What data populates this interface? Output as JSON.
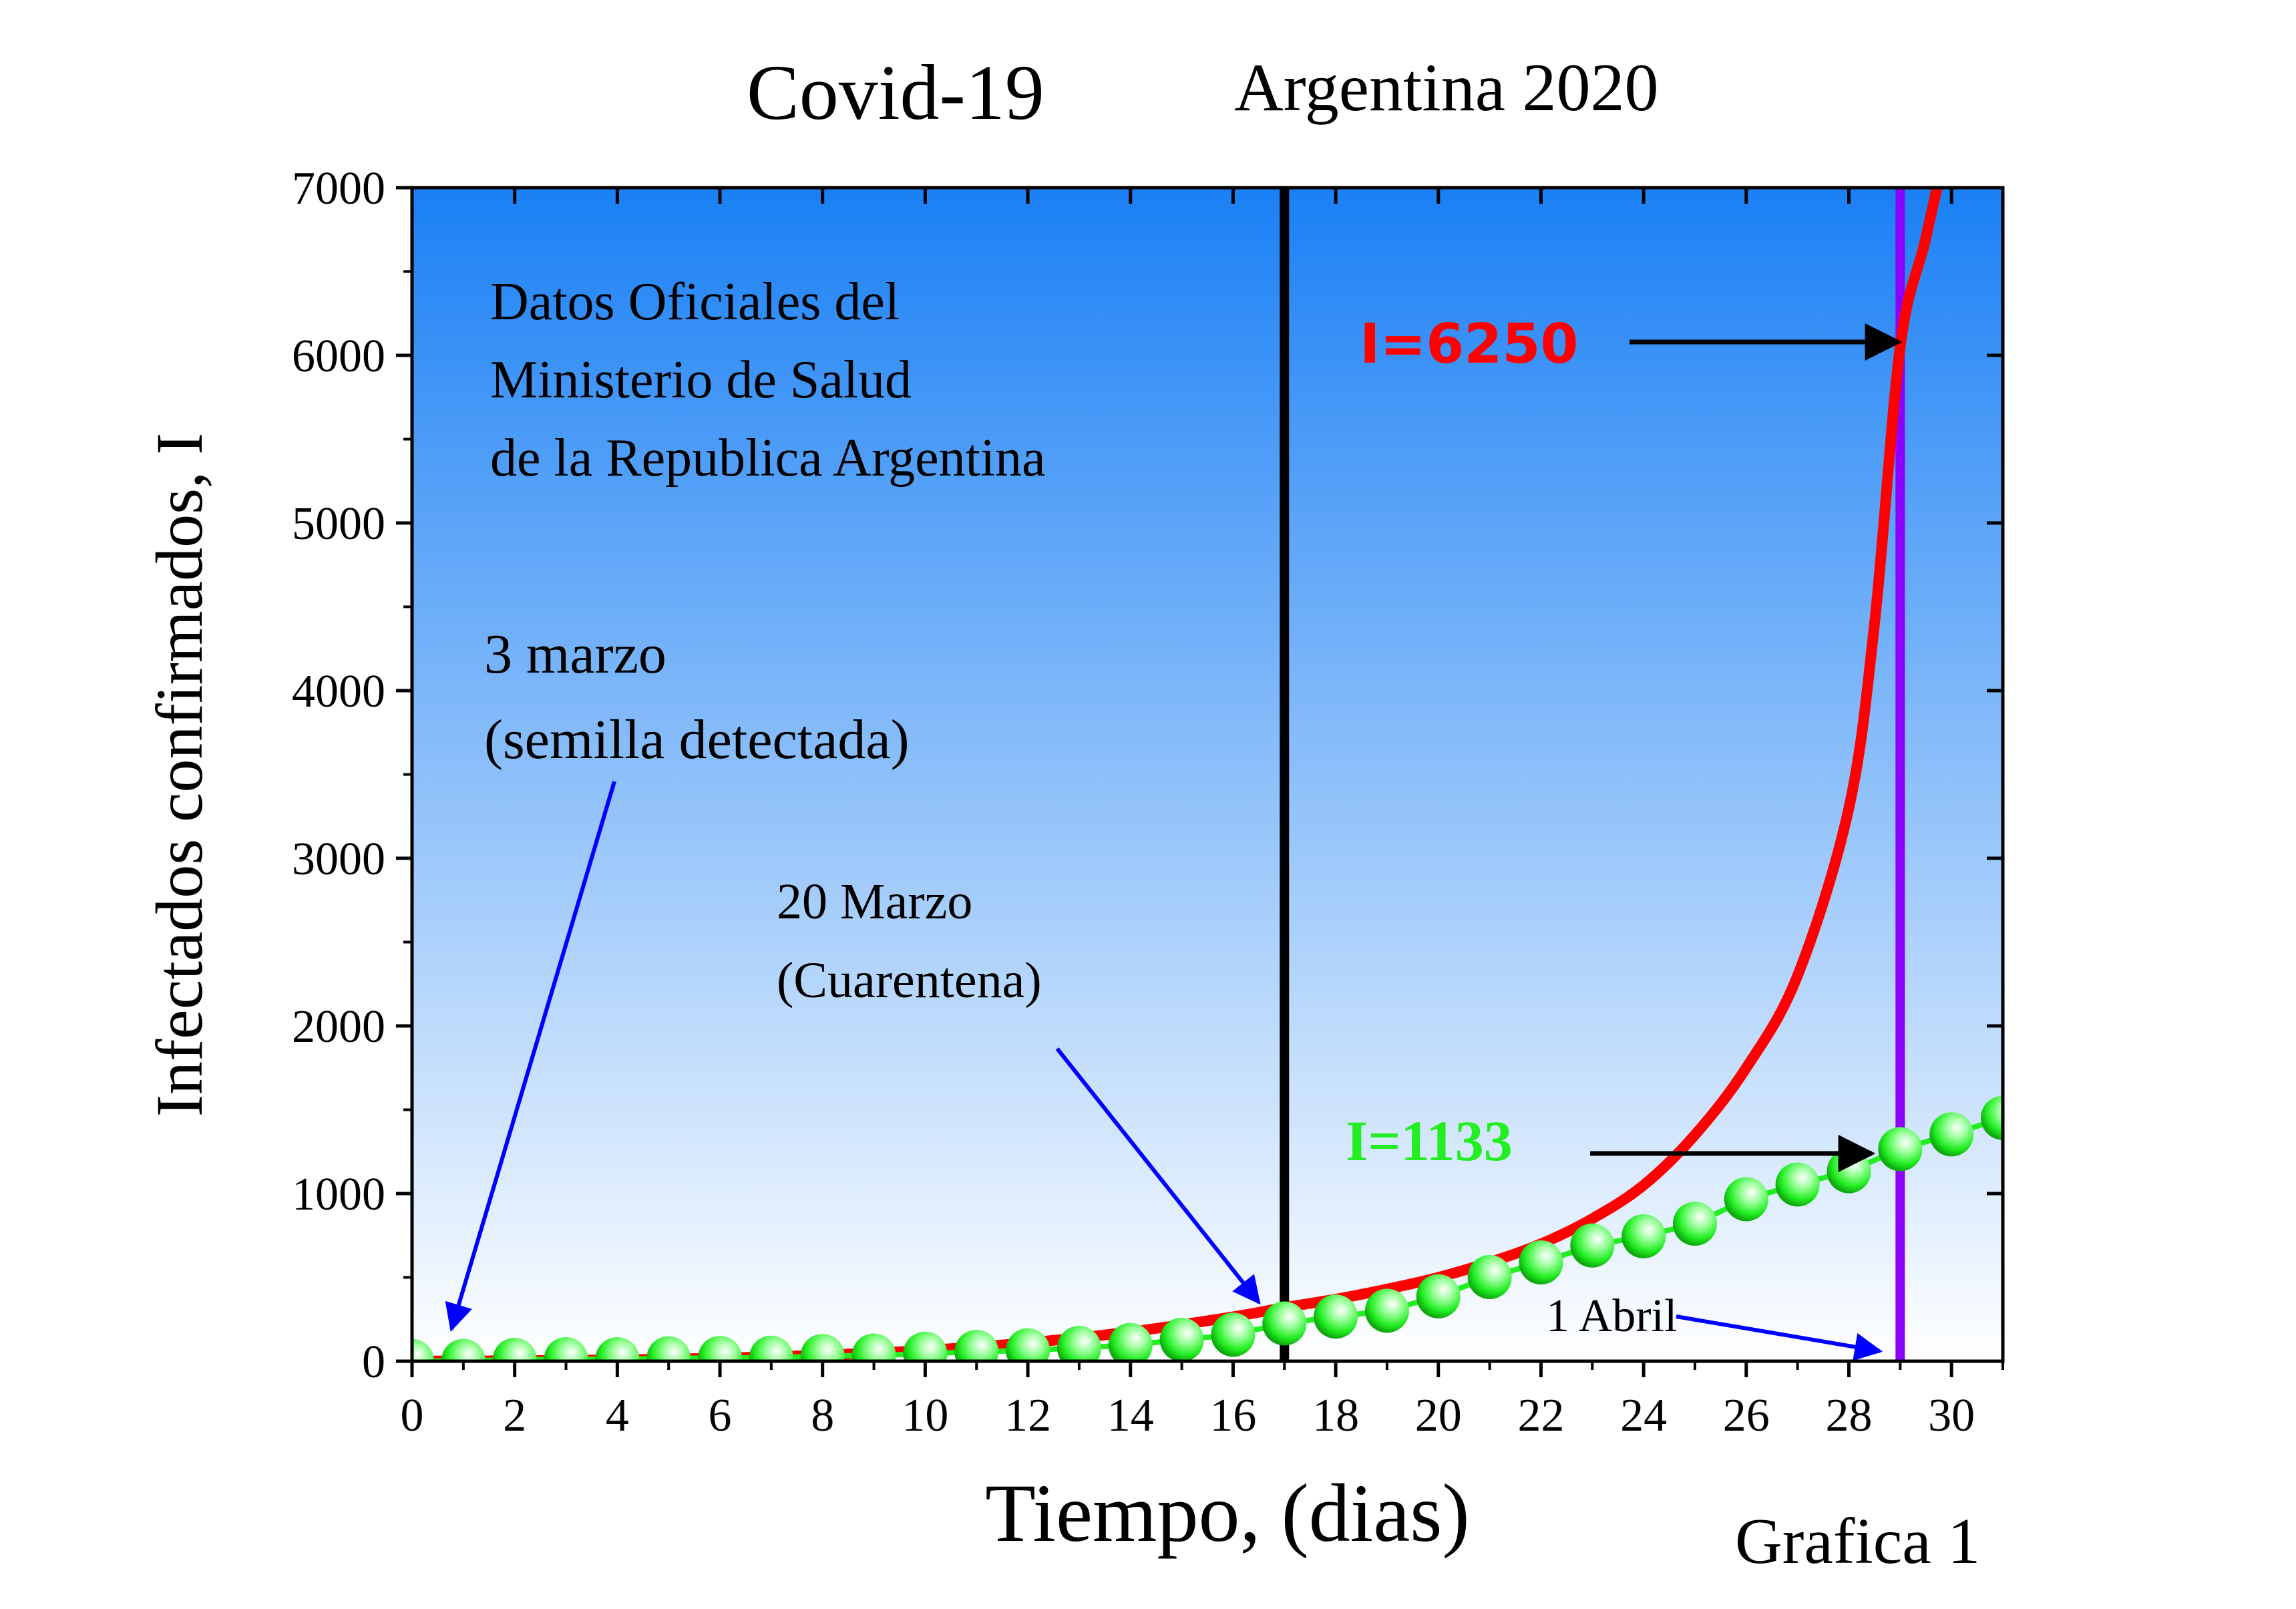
{
  "header": {
    "title_left": "Covid-19",
    "title_right": "Argentina 2020"
  },
  "figure_label": "Grafica 1",
  "annotations": {
    "source_lines": [
      "Datos Oficiales del",
      "Ministerio de Salud",
      "de la Republica Argentina"
    ],
    "seed_lines": [
      "3 marzo",
      "(semilla detectada)"
    ],
    "quarantine_lines": [
      "20 Marzo",
      "(Cuarentena)"
    ],
    "april_label": "1 Abril",
    "red_value_label": "I=6250",
    "green_value_label": "I=1133"
  },
  "colors": {
    "bg_top": "#1a80f5",
    "bg_bottom": "#ffffff",
    "exponential": "#ff0000",
    "observed": "#22ee22",
    "quarantine_line": "#000000",
    "april_line": "#8b00ff",
    "pointer_arrows": "#0000ff",
    "value_arrows": "#000000"
  },
  "chart_data": {
    "type": "line",
    "xlabel": "Tiempo, (dias)",
    "ylabel": "Infectados confirmados,  I",
    "xlim": [
      0,
      31
    ],
    "ylim": [
      0,
      7000
    ],
    "x_ticks": [
      0,
      2,
      4,
      6,
      8,
      10,
      12,
      14,
      16,
      18,
      20,
      22,
      24,
      26,
      28,
      30
    ],
    "y_ticks": [
      0,
      1000,
      2000,
      3000,
      4000,
      5000,
      6000,
      7000
    ],
    "grid": false,
    "vertical_lines": [
      {
        "x": 17,
        "label": "20 Marzo (Cuarentena)"
      },
      {
        "x": 29,
        "label": "1 Abril"
      }
    ],
    "series": [
      {
        "style": "markers",
        "x": [
          0,
          1,
          2,
          3,
          4,
          5,
          6,
          7,
          8,
          9,
          10,
          11,
          12,
          13,
          14,
          15,
          16,
          17,
          18,
          19,
          20,
          21,
          22,
          23,
          24,
          25,
          26,
          27,
          28,
          29,
          30,
          31
        ],
        "y": [
          1,
          2,
          8,
          12,
          12,
          17,
          19,
          21,
          31,
          34,
          45,
          56,
          65,
          79,
          97,
          128,
          158,
          225,
          266,
          301,
          387,
          502,
          589,
          690,
          745,
          820,
          966,
          1054,
          1133,
          1265,
          1353,
          1451
        ]
      },
      {
        "style": "line",
        "x": [
          0,
          2,
          4,
          6,
          8,
          10,
          12,
          14,
          16,
          17,
          18,
          19,
          20,
          21,
          22,
          23,
          24,
          25,
          26,
          27,
          28,
          28.5,
          29,
          29.5,
          30
        ],
        "y": [
          1,
          3,
          8,
          18,
          36,
          65,
          110,
          175,
          265,
          320,
          370,
          430,
          500,
          590,
          700,
          850,
          1050,
          1350,
          1750,
          2300,
          3300,
          4400,
          6050,
          6700,
          7400
        ]
      }
    ]
  }
}
